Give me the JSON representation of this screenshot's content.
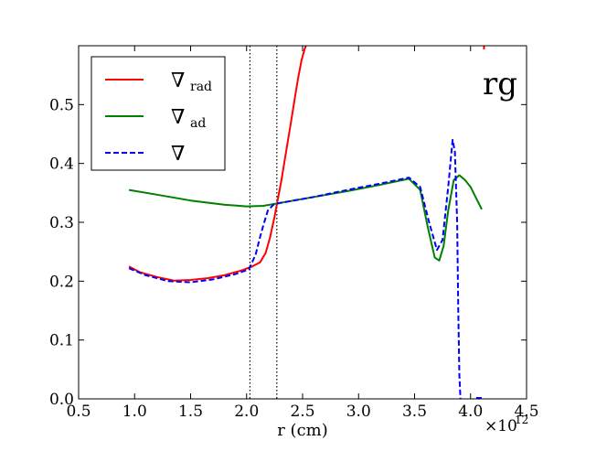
{
  "chart_data": {
    "type": "line",
    "title": "",
    "panel_label": "rg",
    "xlabel": "r (cm)",
    "x_scale_label": "×10",
    "x_scale_exponent": "12",
    "ylabel": "",
    "xlim": [
      0.5,
      4.5
    ],
    "ylim": [
      0.0,
      0.6
    ],
    "x_ticks": [
      "0.5",
      "1.0",
      "1.5",
      "2.0",
      "2.5",
      "3.0",
      "3.5",
      "4.0",
      "4.5"
    ],
    "y_ticks": [
      "0.0",
      "0.1",
      "0.2",
      "0.3",
      "0.4",
      "0.5"
    ],
    "legend_position": "upper-left",
    "vertical_lines": [
      2.03,
      2.27
    ],
    "series": [
      {
        "name": "∇",
        "subscript": "rad",
        "color": "#ff0000",
        "style": "solid",
        "x": [
          0.95,
          1.05,
          1.2,
          1.35,
          1.5,
          1.65,
          1.8,
          1.95,
          2.05,
          2.12,
          2.17,
          2.21,
          2.25,
          2.28,
          2.31,
          2.34,
          2.37,
          2.4,
          2.43,
          2.46,
          2.49,
          2.52,
          2.54
        ],
        "y": [
          0.225,
          0.215,
          0.207,
          0.201,
          0.202,
          0.205,
          0.21,
          0.218,
          0.225,
          0.232,
          0.248,
          0.275,
          0.31,
          0.34,
          0.37,
          0.405,
          0.44,
          0.475,
          0.51,
          0.545,
          0.575,
          0.595,
          0.605
        ]
      },
      {
        "name": "∇",
        "subscript": "ad",
        "color": "#008000",
        "style": "solid",
        "x": [
          0.95,
          1.2,
          1.5,
          1.8,
          2.0,
          2.15,
          2.3,
          2.6,
          2.9,
          3.2,
          3.45,
          3.55,
          3.62,
          3.68,
          3.72,
          3.76,
          3.8,
          3.85,
          3.9,
          3.95,
          4.0,
          4.1
        ],
        "y": [
          0.355,
          0.347,
          0.337,
          0.33,
          0.327,
          0.328,
          0.333,
          0.343,
          0.353,
          0.364,
          0.374,
          0.355,
          0.29,
          0.24,
          0.235,
          0.26,
          0.32,
          0.372,
          0.38,
          0.372,
          0.36,
          0.322
        ]
      },
      {
        "name": "∇",
        "subscript": "",
        "color": "#0000ff",
        "style": "dashed",
        "x": [
          0.95,
          1.1,
          1.3,
          1.5,
          1.7,
          1.9,
          2.02,
          2.08,
          2.12,
          2.15,
          2.19,
          2.24,
          2.3,
          2.6,
          2.9,
          3.2,
          3.45,
          3.55,
          3.63,
          3.7,
          3.75,
          3.8,
          3.84,
          3.86,
          3.88,
          3.89,
          3.9,
          3.91
        ],
        "y": [
          0.222,
          0.21,
          0.2,
          0.198,
          0.203,
          0.212,
          0.22,
          0.245,
          0.275,
          0.295,
          0.32,
          0.33,
          0.333,
          0.343,
          0.355,
          0.366,
          0.376,
          0.36,
          0.3,
          0.253,
          0.27,
          0.36,
          0.44,
          0.42,
          0.3,
          0.15,
          0.04,
          0.0
        ]
      }
    ]
  }
}
